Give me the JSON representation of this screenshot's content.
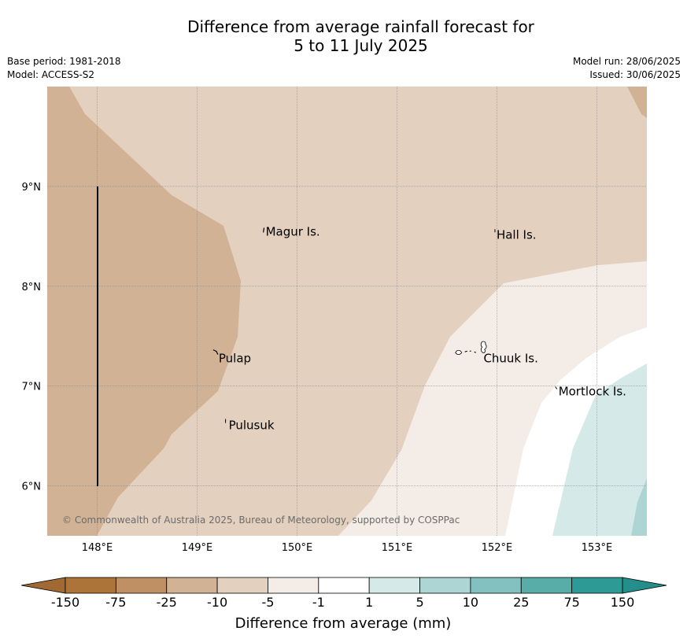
{
  "title": {
    "line1": "Difference from average rainfall forecast for",
    "line2": "5 to 11 July 2025"
  },
  "meta": {
    "base_period": "Base period: 1981-2018",
    "model": "Model: ACCESS-S2",
    "model_run": "Model run: 28/06/2025",
    "issued": "Issued: 30/06/2025"
  },
  "map": {
    "lon_range": [
      147.5,
      153.5
    ],
    "lat_range": [
      5.5,
      10.0
    ],
    "lon_ticks": [
      {
        "value": 148,
        "label": "148°E"
      },
      {
        "value": 149,
        "label": "149°E"
      },
      {
        "value": 150,
        "label": "150°E"
      },
      {
        "value": 151,
        "label": "151°E"
      },
      {
        "value": 152,
        "label": "152°E"
      },
      {
        "value": 153,
        "label": "153°E"
      }
    ],
    "lat_ticks": [
      {
        "value": 6,
        "label": "6°N"
      },
      {
        "value": 7,
        "label": "7°N"
      },
      {
        "value": 8,
        "label": "8°N"
      },
      {
        "value": 9,
        "label": "9°N"
      }
    ],
    "gridlines": true,
    "places": [
      {
        "name": "Magur Is.",
        "lon": 149.67,
        "lat": 8.57
      },
      {
        "name": "Hall Is.",
        "lon": 151.98,
        "lat": 8.54
      },
      {
        "name": "Pulap",
        "lon": 149.2,
        "lat": 7.3
      },
      {
        "name": "Chuuk Is.",
        "lon": 151.85,
        "lat": 7.3
      },
      {
        "name": "Mortlock Is.",
        "lon": 152.6,
        "lat": 6.97
      },
      {
        "name": "Pulusuk",
        "lon": 149.3,
        "lat": 6.63
      }
    ],
    "copyright": "© Commonwealth of Australia 2025, Bureau of Meteorology, supported by COSPPac",
    "colors": {
      "lt_-25": "#b07840",
      "-25_-10": "#d1b294",
      "-10_-5": "#e3d0bf",
      "-5_-1": "#f4ece6",
      "-1_1": "#ffffff",
      "1_5": "#d4e9e8",
      "5_10": "#acd5d3"
    }
  },
  "colorbar": {
    "label": "Difference from average (mm)",
    "ticks": [
      "-150",
      "-75",
      "-25",
      "-10",
      "-5",
      "-1",
      "1",
      "5",
      "10",
      "25",
      "75",
      "150"
    ],
    "colors": [
      "#ac7439",
      "#be9064",
      "#d1b294",
      "#e3d0bf",
      "#f4ece6",
      "#ffffff",
      "#d4e9e8",
      "#acd5d3",
      "#82c1bf",
      "#58ada9",
      "#2e9a96"
    ],
    "under_color": "#a06832",
    "over_color": "#248e8a"
  }
}
